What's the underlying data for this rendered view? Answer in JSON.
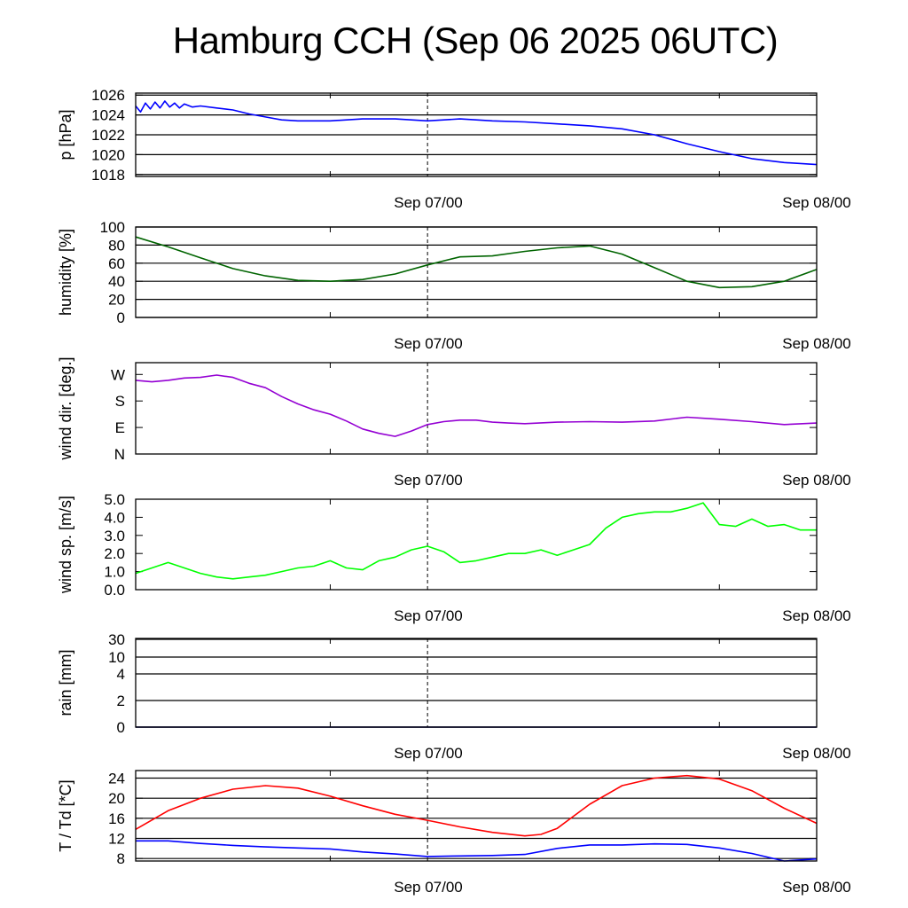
{
  "title": "Hamburg CCH (Sep 06 2025 06UTC)",
  "x_axis": {
    "start": "2025-09-06 06:00 UTC",
    "end": "2025-09-08 00:00 UTC",
    "tick_labels": [
      "Sep 07/00",
      "Sep 08/00"
    ],
    "minor_ticks_hours": [
      12,
      36
    ]
  },
  "chart_data": [
    {
      "type": "line",
      "ylabel": "p [hPa]",
      "ylim": [
        1017.8,
        1026.2
      ],
      "yticks": [
        "1018",
        "1020",
        "1022",
        "1024",
        "1026"
      ],
      "ytick_values": [
        1018,
        1020,
        1022,
        1024,
        1026
      ],
      "grid": true,
      "series": [
        {
          "color": "#0000ff",
          "x_hours": [
            0,
            0.3,
            0.6,
            0.9,
            1.2,
            1.5,
            1.8,
            2.1,
            2.4,
            2.7,
            3,
            3.5,
            4,
            5,
            6,
            7,
            8,
            9,
            10,
            12,
            14,
            16,
            18,
            20,
            22,
            24,
            26,
            28,
            30,
            32,
            34,
            36,
            38,
            40,
            42
          ],
          "values": [
            1024.9,
            1024.3,
            1025.2,
            1024.6,
            1025.3,
            1024.7,
            1025.4,
            1024.8,
            1025.2,
            1024.7,
            1025.1,
            1024.8,
            1024.9,
            1024.7,
            1024.5,
            1024.1,
            1023.8,
            1023.5,
            1023.4,
            1023.4,
            1023.6,
            1023.6,
            1023.4,
            1023.6,
            1023.4,
            1023.3,
            1023.1,
            1022.9,
            1022.6,
            1022.0,
            1021.1,
            1020.3,
            1019.6,
            1019.2,
            1019.0
          ]
        }
      ]
    },
    {
      "type": "line",
      "ylabel": "humidity [%]",
      "ylim": [
        0,
        100
      ],
      "yticks": [
        "0",
        "20",
        "40",
        "60",
        "80",
        "100"
      ],
      "ytick_values": [
        0,
        20,
        40,
        60,
        80,
        100
      ],
      "grid": true,
      "series": [
        {
          "color": "#006400",
          "x_hours": [
            0,
            2,
            4,
            6,
            8,
            10,
            12,
            14,
            16,
            18,
            20,
            22,
            24,
            26,
            28,
            30,
            32,
            34,
            36,
            38,
            40,
            42
          ],
          "values": [
            89,
            78,
            66,
            54,
            46,
            41,
            40,
            42,
            48,
            58,
            67,
            68,
            73,
            77,
            79,
            70,
            55,
            40,
            33,
            34,
            40,
            53
          ]
        }
      ]
    },
    {
      "type": "line",
      "ylabel": "wind dir. [deg.]",
      "ylim": [
        0,
        310
      ],
      "yticks": [
        "N",
        "E",
        "S",
        "W"
      ],
      "ytick_values": [
        0,
        90,
        180,
        270
      ],
      "grid": false,
      "series": [
        {
          "color": "#9400d3",
          "x_hours": [
            0,
            1,
            2,
            3,
            4,
            5,
            6,
            7,
            8,
            9,
            10,
            11,
            12,
            13,
            14,
            15,
            16,
            17,
            18,
            19,
            20,
            21,
            22,
            23,
            24,
            26,
            28,
            30,
            32,
            34,
            36,
            38,
            40,
            42
          ],
          "values": [
            250,
            245,
            250,
            258,
            260,
            268,
            260,
            240,
            225,
            195,
            170,
            150,
            135,
            112,
            85,
            70,
            60,
            78,
            100,
            110,
            115,
            115,
            108,
            105,
            103,
            108,
            110,
            108,
            112,
            125,
            118,
            110,
            100,
            105
          ]
        }
      ]
    },
    {
      "type": "line",
      "ylabel": "wind sp. [m/s]",
      "ylim": [
        0,
        5
      ],
      "yticks": [
        "0.0",
        "1.0",
        "2.0",
        "3.0",
        "4.0",
        "5.0"
      ],
      "ytick_values": [
        0,
        1,
        2,
        3,
        4,
        5
      ],
      "grid": false,
      "series": [
        {
          "color": "#00ff00",
          "x_hours": [
            0,
            1,
            2,
            3,
            4,
            5,
            6,
            7,
            8,
            9,
            10,
            11,
            12,
            13,
            14,
            15,
            16,
            17,
            18,
            19,
            20,
            21,
            22,
            23,
            24,
            25,
            26,
            27,
            28,
            29,
            30,
            31,
            32,
            33,
            34,
            35,
            36,
            37,
            38,
            39,
            40,
            41,
            42
          ],
          "values": [
            0.9,
            1.2,
            1.5,
            1.2,
            0.9,
            0.7,
            0.6,
            0.7,
            0.8,
            1.0,
            1.2,
            1.3,
            1.6,
            1.2,
            1.1,
            1.6,
            1.8,
            2.2,
            2.4,
            2.1,
            1.5,
            1.6,
            1.8,
            2.0,
            2.0,
            2.2,
            1.9,
            2.2,
            2.5,
            3.4,
            4.0,
            4.2,
            4.3,
            4.3,
            4.5,
            4.8,
            3.6,
            3.5,
            3.9,
            3.5,
            3.6,
            3.3,
            3.3
          ]
        }
      ]
    },
    {
      "type": "line",
      "ylabel": "rain [mm]",
      "yscale": "nonlinear",
      "yticks": [
        "0",
        "2",
        "4",
        "10",
        "30"
      ],
      "ytick_values": [
        0,
        2,
        4,
        10,
        30
      ],
      "grid": true,
      "series": [
        {
          "color": "#000080",
          "x_hours": [
            0,
            42
          ],
          "values": [
            0,
            0
          ]
        }
      ]
    },
    {
      "type": "line",
      "ylabel": "T / Td [*C]",
      "ylim": [
        7.5,
        25.5
      ],
      "yticks": [
        "8",
        "12",
        "16",
        "20",
        "24"
      ],
      "ytick_values": [
        8,
        12,
        16,
        20,
        24
      ],
      "grid": true,
      "series": [
        {
          "color": "#ff0000",
          "x_hours": [
            0,
            2,
            4,
            6,
            8,
            10,
            12,
            14,
            16,
            18,
            20,
            22,
            24,
            25,
            26,
            28,
            30,
            32,
            34,
            36,
            38,
            40,
            42
          ],
          "values": [
            13.8,
            17.5,
            20,
            21.8,
            22.5,
            22.0,
            20.4,
            18.5,
            16.8,
            15.6,
            14.3,
            13.2,
            12.5,
            12.8,
            14.0,
            18.8,
            22.5,
            24.0,
            24.5,
            23.8,
            21.5,
            18.0,
            15.0
          ]
        },
        {
          "color": "#0000ff",
          "x_hours": [
            0,
            2,
            4,
            6,
            8,
            10,
            12,
            14,
            16,
            18,
            20,
            22,
            24,
            26,
            28,
            30,
            32,
            34,
            36,
            38,
            40,
            42
          ],
          "values": [
            11.5,
            11.5,
            11.0,
            10.6,
            10.3,
            10.1,
            9.9,
            9.3,
            8.9,
            8.4,
            8.5,
            8.6,
            8.8,
            10.0,
            10.7,
            10.7,
            10.9,
            10.8,
            10.1,
            9.0,
            7.5,
            7.9
          ]
        }
      ]
    }
  ]
}
